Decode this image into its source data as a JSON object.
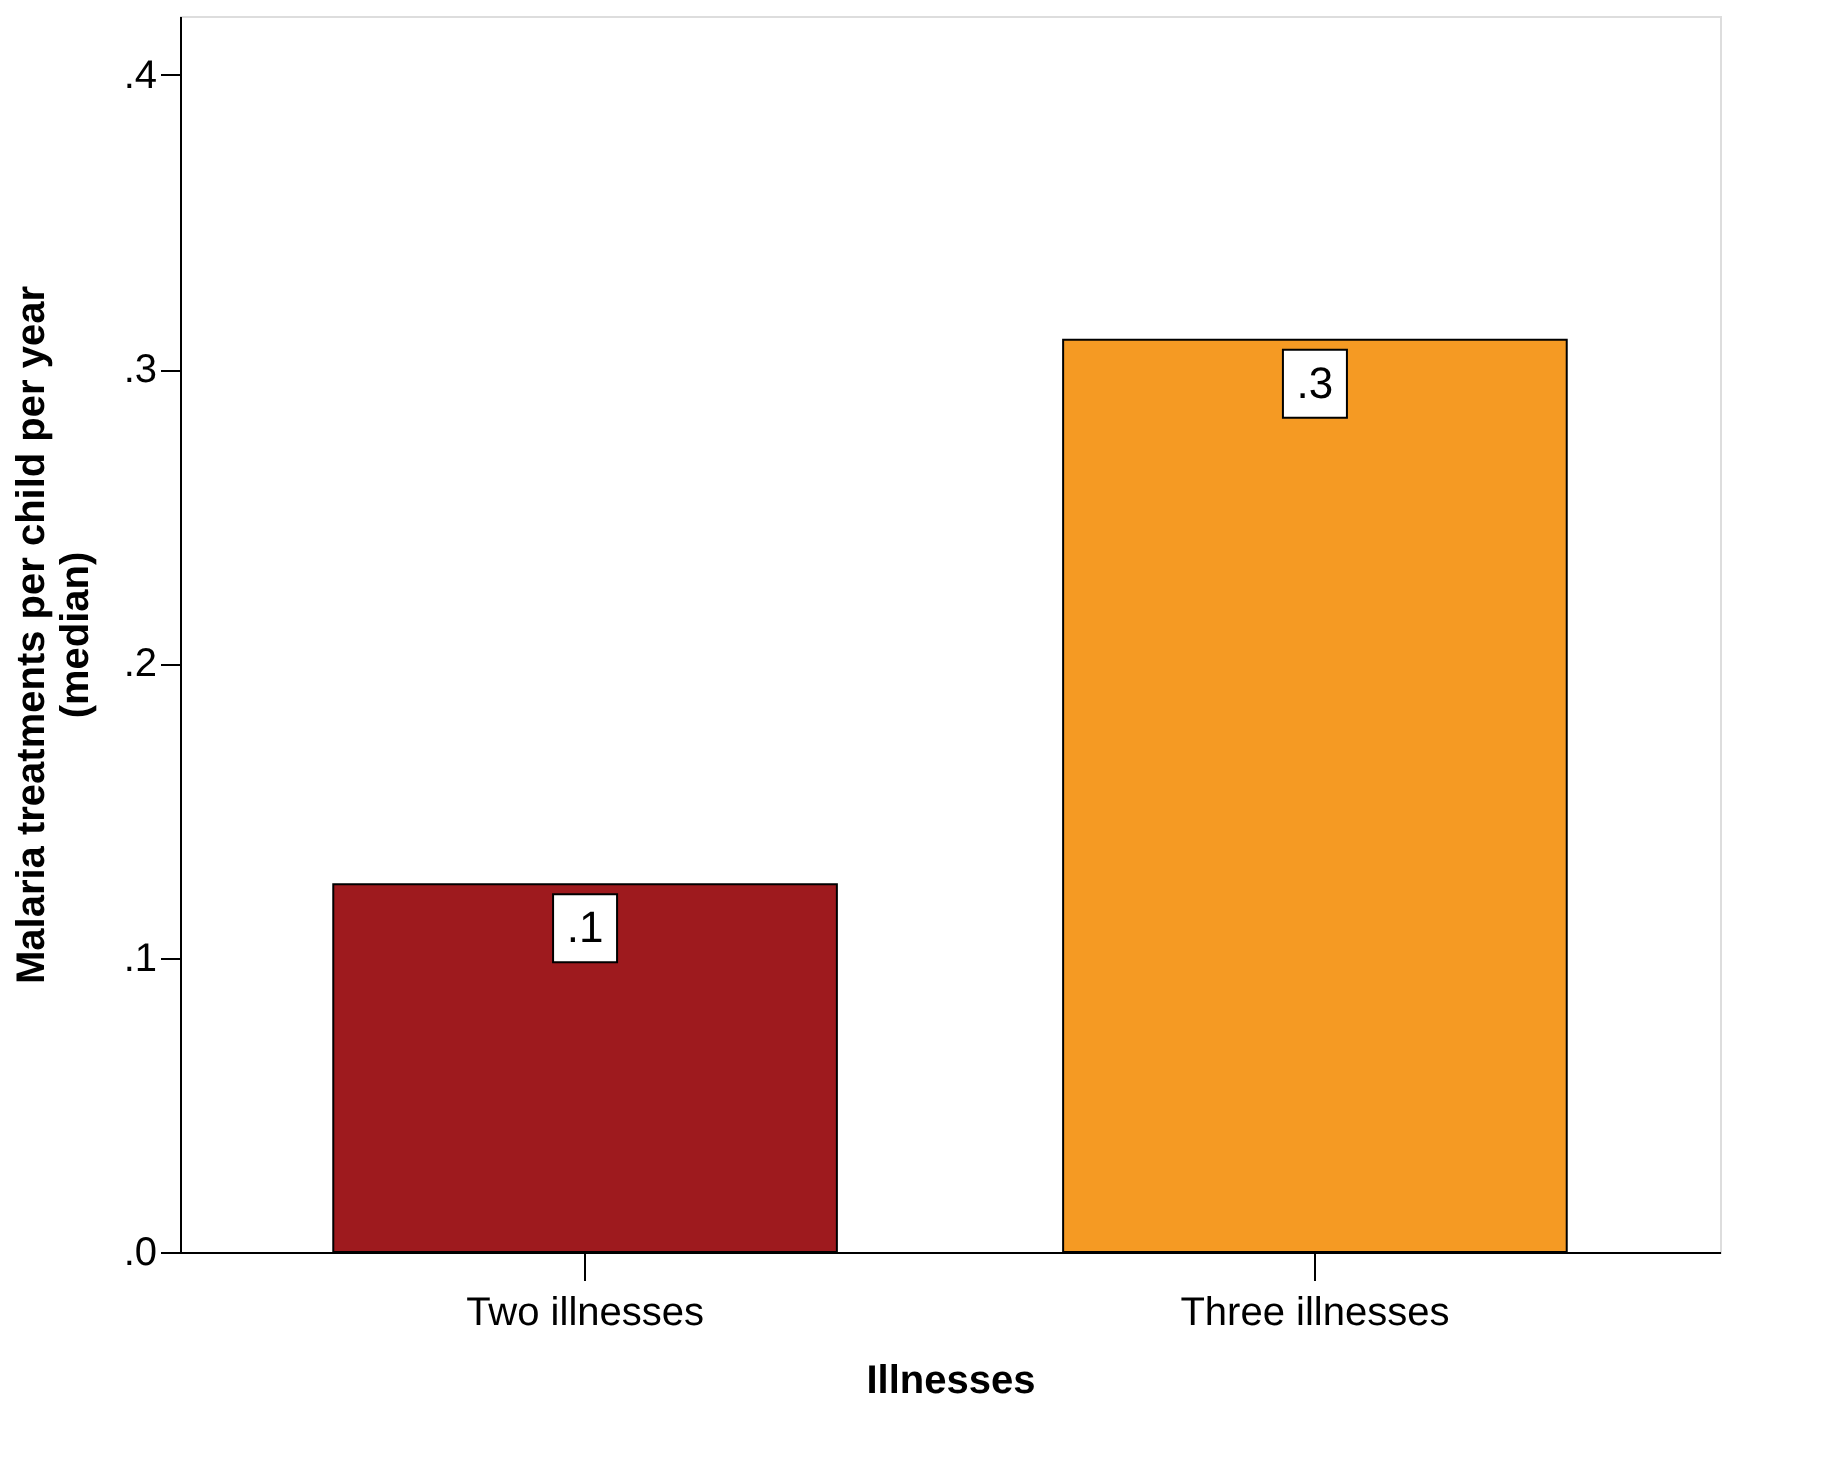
{
  "chart_data": {
    "type": "bar",
    "xlabel": "Illnesses",
    "ylabel": "Malaria treatments per child per year\n(median)",
    "categories": [
      "Two illnesses",
      "Three illnesses"
    ],
    "values": [
      0.125,
      0.31
    ],
    "colors": [
      "#9e1a1e",
      "#f59a23"
    ],
    "value_labels": [
      ".1",
      ".3"
    ],
    "ylim": [
      0,
      0.42
    ],
    "yticks": [
      {
        "value": 0,
        "label": ".0"
      },
      {
        "value": 0.1,
        "label": ".1"
      },
      {
        "value": 0.2,
        "label": ".2"
      },
      {
        "value": 0.3,
        "label": ".3"
      },
      {
        "value": 0.4,
        "label": ".4"
      }
    ],
    "grid": false
  }
}
